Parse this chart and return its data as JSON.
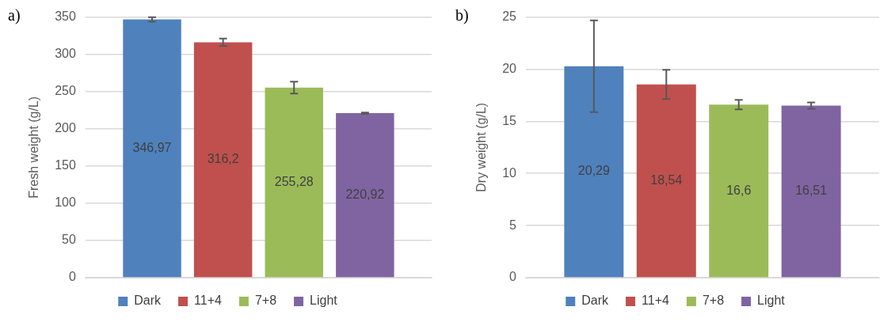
{
  "chart_data": [
    {
      "type": "bar",
      "title": "a)",
      "ylabel": "Fresh weight (g/L)",
      "categories": [
        null
      ],
      "ylim": [
        0,
        350
      ],
      "yticks": [
        0,
        50,
        100,
        150,
        200,
        250,
        300,
        350
      ],
      "grid": "y",
      "legend": "bottom",
      "tick_labels": "y",
      "series": [
        {
          "name": "Dark",
          "color": "#4f81bd",
          "values": [
            346.97
          ],
          "errors": [
            3
          ],
          "value_labels": [
            "346,97"
          ]
        },
        {
          "name": "11+4",
          "color": "#c0504d",
          "values": [
            316.2
          ],
          "errors": [
            5
          ],
          "value_labels": [
            "316,2"
          ]
        },
        {
          "name": "7+8",
          "color": "#9bbb59",
          "values": [
            255.28
          ],
          "errors": [
            8
          ],
          "value_labels": [
            "255,28"
          ]
        },
        {
          "name": "Light",
          "color": "#8064a2",
          "values": [
            220.92
          ],
          "errors": [
            1
          ],
          "value_labels": [
            "220,92"
          ]
        }
      ]
    },
    {
      "type": "bar",
      "title": "b)",
      "ylabel": "Dry weight (g/L)",
      "categories": [
        null
      ],
      "ylim": [
        0,
        25
      ],
      "yticks": [
        0,
        5,
        10,
        15,
        20,
        25
      ],
      "grid": "y",
      "legend": "bottom",
      "tick_labels": "y",
      "series": [
        {
          "name": "Dark",
          "color": "#4f81bd",
          "values": [
            20.29
          ],
          "errors": [
            4.4
          ],
          "value_labels": [
            "20,29"
          ]
        },
        {
          "name": "11+4",
          "color": "#c0504d",
          "values": [
            18.54
          ],
          "errors": [
            1.4
          ],
          "value_labels": [
            "18,54"
          ]
        },
        {
          "name": "7+8",
          "color": "#9bbb59",
          "values": [
            16.6
          ],
          "errors": [
            0.45
          ],
          "value_labels": [
            "16,6"
          ]
        },
        {
          "name": "Light",
          "color": "#8064a2",
          "values": [
            16.51
          ],
          "errors": [
            0.3
          ],
          "value_labels": [
            "16,51"
          ]
        }
      ]
    }
  ]
}
